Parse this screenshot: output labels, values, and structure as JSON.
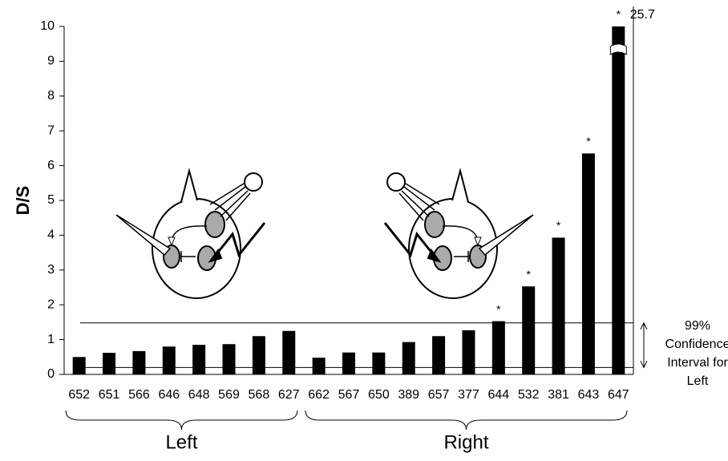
{
  "chart_data": {
    "type": "bar",
    "y_label": "D/S",
    "categories": [
      "652",
      "651",
      "566",
      "646",
      "648",
      "569",
      "568",
      "627",
      "662",
      "567",
      "650",
      "389",
      "657",
      "377",
      "644",
      "532",
      "381",
      "643",
      "647"
    ],
    "values": [
      0.5,
      0.62,
      0.67,
      0.8,
      0.85,
      0.87,
      1.1,
      1.25,
      0.48,
      0.63,
      0.63,
      0.93,
      1.1,
      1.27,
      1.53,
      2.53,
      3.93,
      6.35,
      25.7
    ],
    "value_labels": [
      null,
      null,
      null,
      null,
      null,
      null,
      null,
      null,
      null,
      null,
      null,
      null,
      null,
      null,
      null,
      null,
      null,
      null,
      "25.7"
    ],
    "significance": [
      null,
      null,
      null,
      null,
      null,
      null,
      null,
      null,
      null,
      null,
      null,
      null,
      null,
      null,
      "*",
      "*",
      "*",
      "*",
      "*"
    ],
    "color": "#000000",
    "ylim": [
      0,
      10
    ],
    "yticks": [
      0,
      1,
      2,
      3,
      4,
      5,
      6,
      7,
      8,
      9,
      10
    ],
    "reference_lines": [
      0.2,
      1.48
    ],
    "reference_note": [
      "99%",
      "Confidence",
      "Interval for",
      "Left"
    ],
    "groups": [
      {
        "label": "Left",
        "size": 8
      },
      {
        "label": "Right",
        "size": 11
      }
    ]
  }
}
